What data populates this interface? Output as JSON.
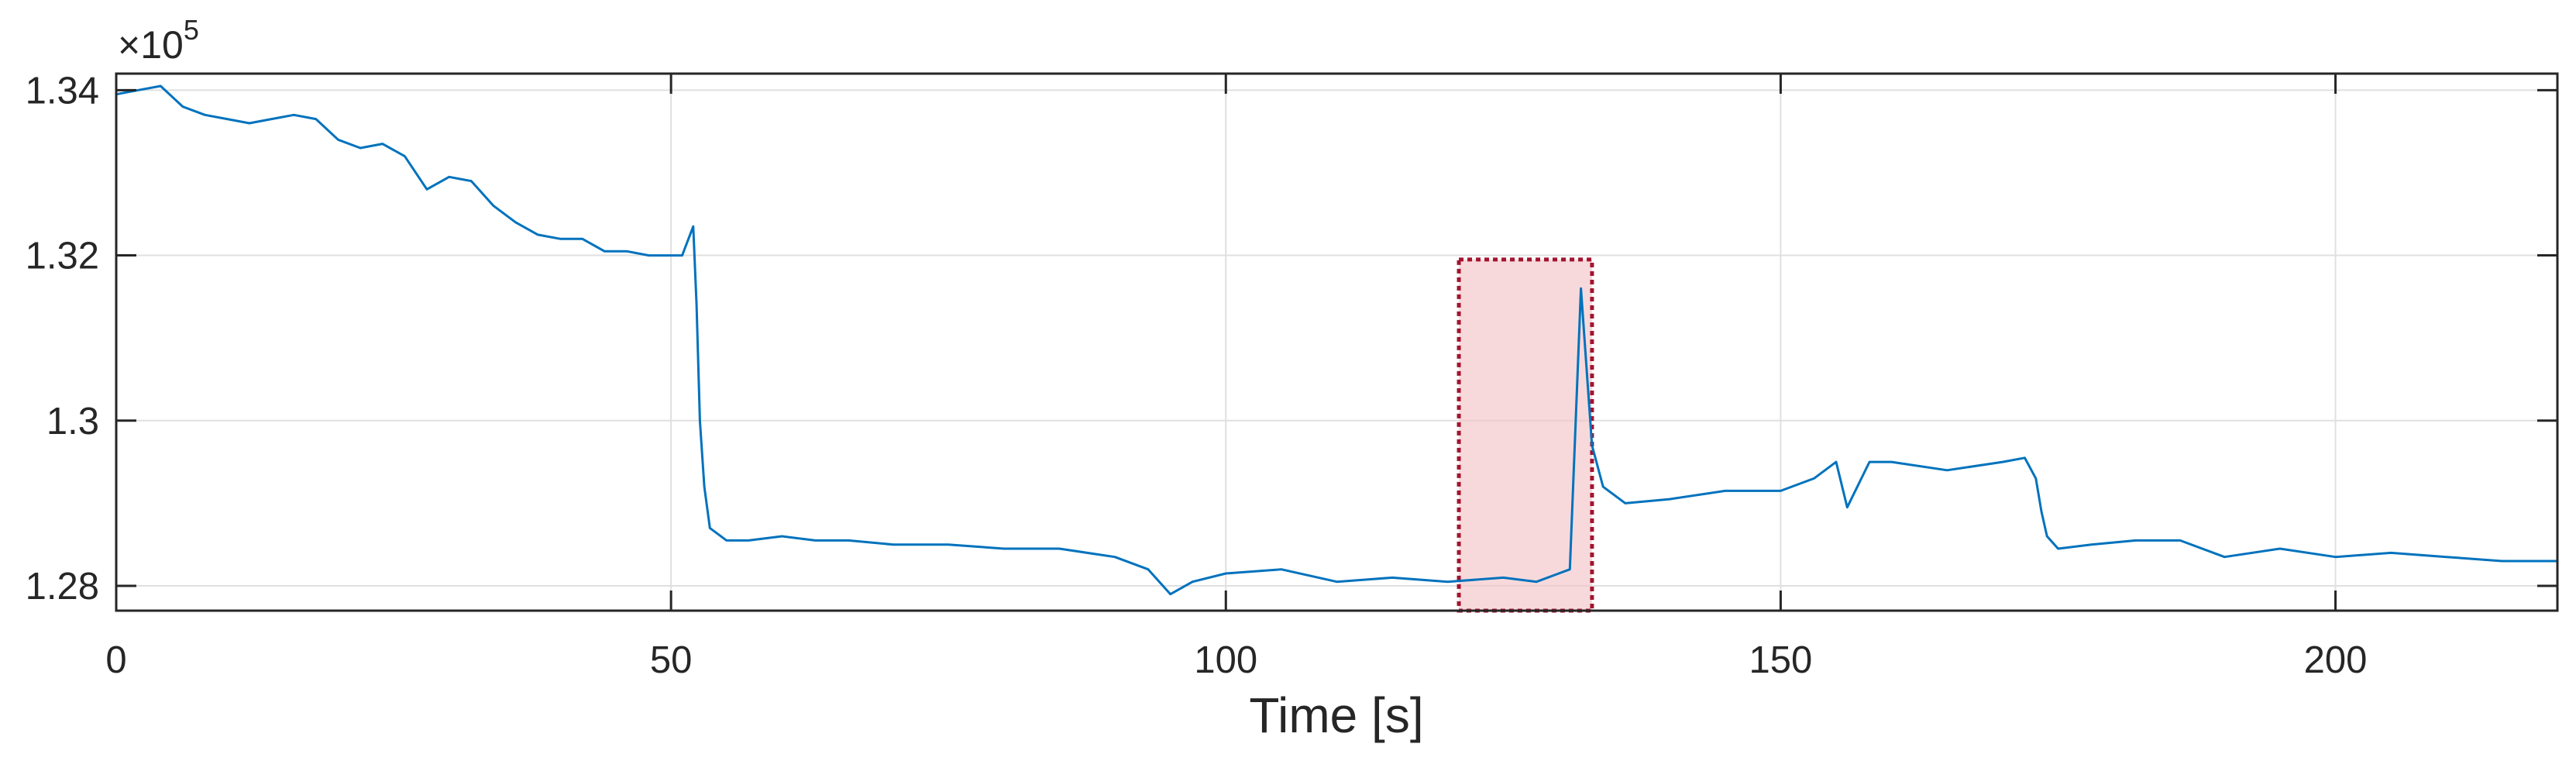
{
  "chart_data": {
    "type": "line",
    "title": "",
    "xlabel": "Time [s]",
    "ylabel": "",
    "exponent_label": {
      "base": "×10",
      "power": "5"
    },
    "xlim": [
      0,
      220
    ],
    "ylim": [
      127700,
      134200
    ],
    "xticks": [
      0,
      50,
      100,
      150,
      200
    ],
    "xtick_labels": [
      "0",
      "50",
      "100",
      "150",
      "200"
    ],
    "yticks": [
      128000,
      130000,
      132000,
      134000
    ],
    "ytick_labels": [
      "1.28",
      "1.3",
      "1.32",
      "1.34"
    ],
    "grid": true,
    "series_color": "#0072BD",
    "highlight_color": "#A2142F",
    "highlight_fill": "#F2C4C8",
    "highlight_region": {
      "x": [
        121,
        133
      ],
      "y": [
        127700,
        131950
      ]
    },
    "series": [
      {
        "x": [
          0,
          2,
          4,
          6,
          8,
          10,
          12,
          14,
          16,
          18,
          20,
          22,
          24,
          26,
          28,
          30,
          32,
          34,
          36,
          38,
          40,
          42,
          44,
          46,
          48,
          50,
          51,
          52,
          52.3,
          52.6,
          53,
          53.5,
          54,
          55,
          57,
          60,
          63,
          66,
          70,
          75,
          80,
          85,
          90,
          93,
          95,
          97,
          100,
          105,
          110,
          115,
          120,
          125,
          128,
          130,
          131,
          132,
          133,
          134,
          136,
          140,
          145,
          150,
          153,
          155,
          156,
          158,
          160,
          165,
          170,
          172,
          173,
          173.5,
          174,
          175,
          178,
          182,
          186,
          190,
          195,
          200,
          205,
          210,
          215,
          220
        ],
        "y": [
          133950,
          134000,
          134050,
          133800,
          133700,
          133650,
          133600,
          133650,
          133700,
          133650,
          133400,
          133300,
          133350,
          133200,
          132800,
          132950,
          132900,
          132600,
          132400,
          132250,
          132200,
          132200,
          132050,
          132050,
          132000,
          132000,
          132000,
          132350,
          131400,
          130000,
          129200,
          128700,
          128650,
          128550,
          128550,
          128600,
          128550,
          128550,
          128500,
          128500,
          128450,
          128450,
          128350,
          128200,
          127900,
          128050,
          128150,
          128200,
          128050,
          128100,
          128050,
          128100,
          128050,
          128150,
          128200,
          131600,
          129700,
          129200,
          129000,
          129050,
          129150,
          129150,
          129300,
          129500,
          128950,
          129500,
          129500,
          129400,
          129500,
          129550,
          129300,
          128900,
          128600,
          128450,
          128500,
          128550,
          128550,
          128350,
          128450,
          128350,
          128400,
          128350,
          128300,
          128300
        ]
      }
    ]
  }
}
